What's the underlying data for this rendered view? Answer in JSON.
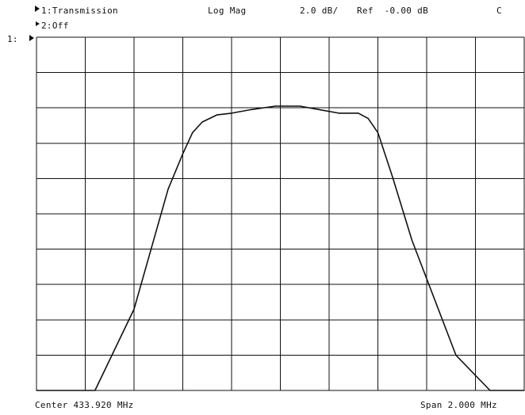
{
  "header": {
    "channel1_label": "1:Transmission",
    "format": "Log Mag",
    "scale": "2.0 dB/",
    "ref": "Ref  -0.00 dB",
    "cal_flag": "C",
    "channel2_label": "2:Off",
    "ref_marker_label": "1:"
  },
  "footer": {
    "center": "Center 433.920 MHz",
    "span": "Span 2.000 MHz"
  },
  "colors": {
    "trace": "#111111",
    "grid": "#111111",
    "background": "#ffffff"
  },
  "chart_data": {
    "type": "line",
    "x_unit": "MHz",
    "y_unit": "dB",
    "xlim": [
      432.92,
      434.92
    ],
    "ylim": [
      -20,
      0
    ],
    "grid": true,
    "x_divisions": 10,
    "y_divisions": 10,
    "series": [
      {
        "x": [
          432.92,
          433.16,
          433.32,
          433.46,
          433.52,
          433.56,
          433.6,
          433.66,
          433.72,
          433.8,
          433.9,
          434.0,
          434.08,
          434.16,
          434.24,
          434.28,
          434.32,
          434.38,
          434.46,
          434.64,
          434.78,
          434.92
        ],
        "y": [
          -20.0,
          -20.0,
          -15.4,
          -8.6,
          -6.6,
          -5.4,
          -4.8,
          -4.4,
          -4.3,
          -4.1,
          -3.9,
          -3.9,
          -4.1,
          -4.3,
          -4.3,
          -4.6,
          -5.4,
          -7.9,
          -11.5,
          -18.0,
          -20.0,
          -20.0
        ]
      }
    ]
  }
}
